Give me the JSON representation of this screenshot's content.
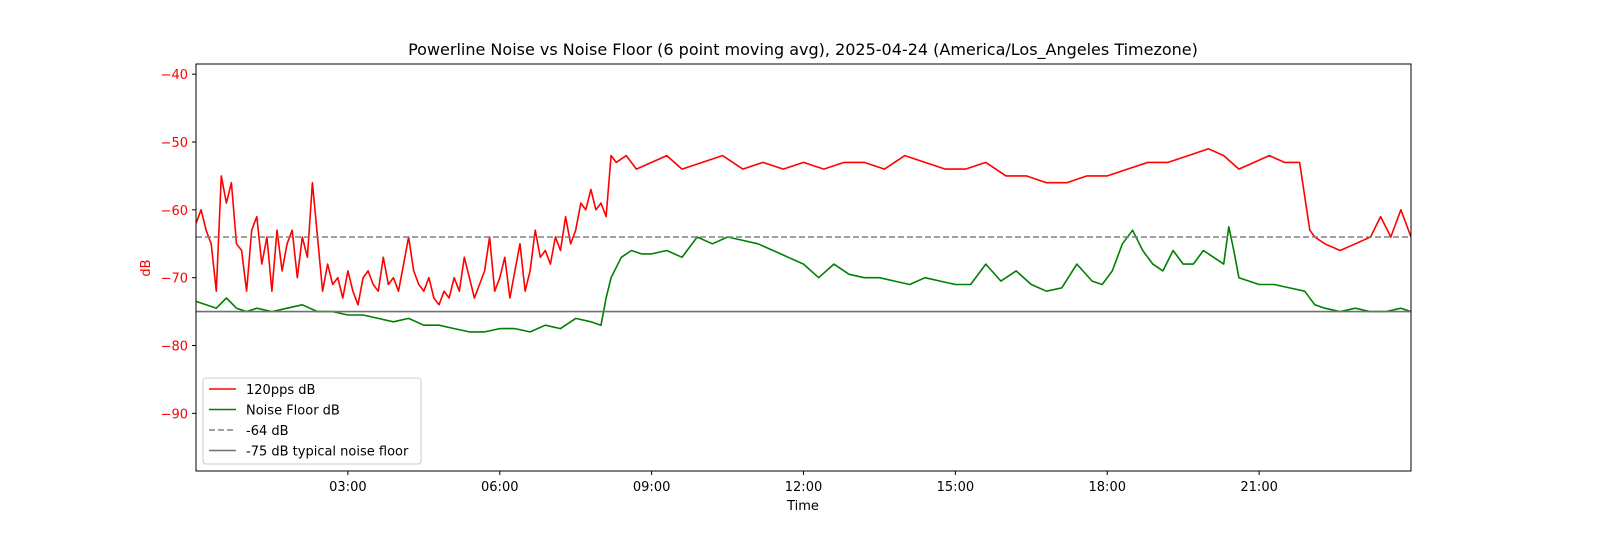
{
  "chart_data": {
    "type": "line",
    "title": "Powerline Noise vs Noise Floor (6 point moving avg), 2025-04-24 (America/Los_Angeles Timezone)",
    "xlabel": "Time",
    "ylabel": "dB",
    "x_unit": "hours",
    "xlim": [
      0,
      24
    ],
    "ylim": [
      -98.5,
      -38.5
    ],
    "x_ticks": [
      3,
      6,
      9,
      12,
      15,
      18,
      21
    ],
    "x_tick_labels": [
      "03:00",
      "06:00",
      "09:00",
      "12:00",
      "15:00",
      "18:00",
      "21:00"
    ],
    "y_ticks": [
      -40,
      -50,
      -60,
      -70,
      -80,
      -90
    ],
    "y_tick_labels": [
      "−40",
      "−50",
      "−60",
      "−70",
      "−80",
      "−90"
    ],
    "ylabel_color": "#ff0000",
    "ytick_color": "#ff0000",
    "grid": false,
    "legend_position": "lower-left",
    "series": [
      {
        "name": "120pps dB",
        "color": "#ff0000",
        "style": "solid",
        "x": [
          0,
          0.1,
          0.2,
          0.3,
          0.4,
          0.5,
          0.6,
          0.7,
          0.8,
          0.9,
          1.0,
          1.1,
          1.2,
          1.3,
          1.4,
          1.5,
          1.6,
          1.7,
          1.8,
          1.9,
          2.0,
          2.1,
          2.2,
          2.3,
          2.4,
          2.5,
          2.6,
          2.7,
          2.8,
          2.9,
          3.0,
          3.1,
          3.2,
          3.3,
          3.4,
          3.5,
          3.6,
          3.7,
          3.8,
          3.9,
          4.0,
          4.1,
          4.2,
          4.3,
          4.4,
          4.5,
          4.6,
          4.7,
          4.8,
          4.9,
          5.0,
          5.1,
          5.2,
          5.3,
          5.4,
          5.5,
          5.6,
          5.7,
          5.8,
          5.9,
          6.0,
          6.1,
          6.2,
          6.3,
          6.4,
          6.5,
          6.6,
          6.7,
          6.8,
          6.9,
          7.0,
          7.1,
          7.2,
          7.3,
          7.4,
          7.5,
          7.6,
          7.7,
          7.8,
          7.9,
          8.0,
          8.1,
          8.2,
          8.3,
          8.5,
          8.7,
          9.0,
          9.3,
          9.6,
          10.0,
          10.4,
          10.8,
          11.2,
          11.6,
          12.0,
          12.4,
          12.8,
          13.2,
          13.6,
          14.0,
          14.4,
          14.8,
          15.2,
          15.6,
          16.0,
          16.4,
          16.8,
          17.2,
          17.6,
          18.0,
          18.4,
          18.8,
          19.2,
          19.6,
          20.0,
          20.3,
          20.6,
          20.9,
          21.2,
          21.5,
          21.8,
          21.9,
          22.0,
          22.1,
          22.3,
          22.6,
          22.9,
          23.2,
          23.4,
          23.6,
          23.8,
          24.0
        ],
        "y": [
          -62,
          -60,
          -63,
          -65,
          -72,
          -55,
          -59,
          -56,
          -65,
          -66,
          -72,
          -63,
          -61,
          -68,
          -64,
          -72,
          -63,
          -69,
          -65,
          -63,
          -70,
          -64,
          -67,
          -56,
          -64,
          -72,
          -68,
          -71,
          -70,
          -73,
          -69,
          -72,
          -74,
          -70,
          -69,
          -71,
          -72,
          -67,
          -71,
          -70,
          -72,
          -68,
          -64,
          -69,
          -71,
          -72,
          -70,
          -73,
          -74,
          -72,
          -73,
          -70,
          -72,
          -67,
          -70,
          -73,
          -71,
          -69,
          -64,
          -72,
          -70,
          -67,
          -73,
          -69,
          -65,
          -72,
          -69,
          -63,
          -67,
          -66,
          -68,
          -64,
          -66,
          -61,
          -65,
          -63,
          -59,
          -60,
          -57,
          -60,
          -59,
          -61,
          -52,
          -53,
          -52,
          -54,
          -53,
          -52,
          -54,
          -53,
          -52,
          -54,
          -53,
          -54,
          -53,
          -54,
          -53,
          -53,
          -54,
          -52,
          -53,
          -54,
          -54,
          -53,
          -55,
          -55,
          -56,
          -56,
          -55,
          -55,
          -54,
          -53,
          -53,
          -52,
          -51,
          -52,
          -54,
          -53,
          -52,
          -53,
          -53,
          -58,
          -63,
          -64,
          -65,
          -66,
          -65,
          -64,
          -61,
          -64,
          -60,
          -64
        ]
      },
      {
        "name": "Noise Floor dB",
        "color": "#008000",
        "style": "solid",
        "x": [
          0,
          0.2,
          0.4,
          0.6,
          0.8,
          1.0,
          1.2,
          1.5,
          1.8,
          2.1,
          2.4,
          2.7,
          3.0,
          3.3,
          3.6,
          3.9,
          4.2,
          4.5,
          4.8,
          5.1,
          5.4,
          5.7,
          6.0,
          6.3,
          6.6,
          6.9,
          7.2,
          7.5,
          7.8,
          8.0,
          8.1,
          8.2,
          8.4,
          8.6,
          8.8,
          9.0,
          9.3,
          9.6,
          9.9,
          10.2,
          10.5,
          10.8,
          11.1,
          11.4,
          11.7,
          12.0,
          12.3,
          12.6,
          12.9,
          13.2,
          13.5,
          13.8,
          14.1,
          14.4,
          14.7,
          15.0,
          15.3,
          15.6,
          15.9,
          16.2,
          16.5,
          16.8,
          17.1,
          17.4,
          17.7,
          17.9,
          18.1,
          18.3,
          18.5,
          18.7,
          18.9,
          19.1,
          19.3,
          19.5,
          19.7,
          19.9,
          20.1,
          20.3,
          20.4,
          20.5,
          20.6,
          20.8,
          21.0,
          21.3,
          21.6,
          21.9,
          22.1,
          22.3,
          22.6,
          22.9,
          23.2,
          23.5,
          23.8,
          24.0
        ],
        "y": [
          -73.5,
          -74,
          -74.5,
          -73,
          -74.5,
          -75,
          -74.5,
          -75,
          -74.5,
          -74,
          -75,
          -75,
          -75.5,
          -75.5,
          -76,
          -76.5,
          -76,
          -77,
          -77,
          -77.5,
          -78,
          -78,
          -77.5,
          -77.5,
          -78,
          -77,
          -77.5,
          -76,
          -76.5,
          -77,
          -73,
          -70,
          -67,
          -66,
          -66.5,
          -66.5,
          -66,
          -67,
          -64,
          -65,
          -64,
          -64.5,
          -65,
          -66,
          -67,
          -68,
          -70,
          -68,
          -69.5,
          -70,
          -70,
          -70.5,
          -71,
          -70,
          -70.5,
          -71,
          -71,
          -68,
          -70.5,
          -69,
          -71,
          -72,
          -71.5,
          -68,
          -70.5,
          -71,
          -69,
          -65,
          -63,
          -66,
          -68,
          -69,
          -66,
          -68,
          -68,
          -66,
          -67,
          -68,
          -62.5,
          -66,
          -70,
          -70.5,
          -71,
          -71,
          -71.5,
          -72,
          -74,
          -74.5,
          -75,
          -74.5,
          -75,
          -75,
          -74.5,
          -75
        ]
      },
      {
        "name": "-64 dB",
        "color": "#808080",
        "style": "dashed",
        "x": [
          0,
          24
        ],
        "y": [
          -64,
          -64
        ]
      },
      {
        "name": "-75 dB typical noise floor",
        "color": "#707070",
        "style": "solid",
        "x": [
          0,
          24
        ],
        "y": [
          -75,
          -75
        ]
      }
    ]
  }
}
